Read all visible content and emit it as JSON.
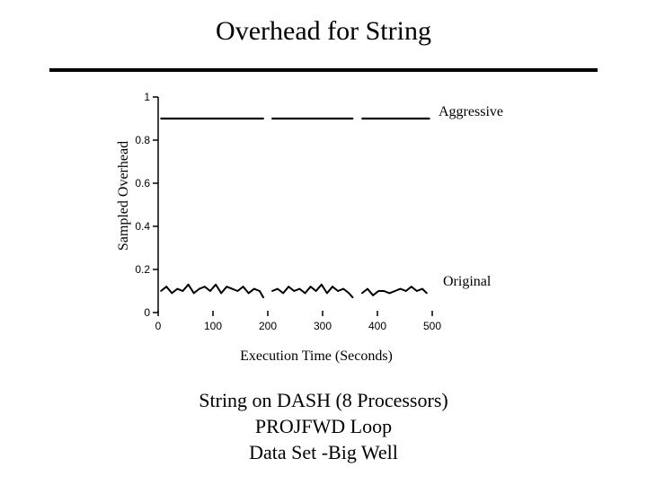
{
  "slide": {
    "title": "Overhead for String",
    "caption_lines": [
      "String on DASH (8 Processors)",
      "PROJFWD Loop",
      "Data Set -Big Well"
    ]
  },
  "chart_data": {
    "type": "line",
    "title": "",
    "xlabel": "Execution Time (Seconds)",
    "ylabel": "Sampled Overhead",
    "xlim": [
      0,
      500
    ],
    "ylim": [
      0,
      1
    ],
    "x_ticks": [
      0,
      100,
      200,
      300,
      400,
      500
    ],
    "y_ticks": [
      0,
      0.2,
      0.4,
      0.6,
      0.8,
      1
    ],
    "grid": false,
    "series": [
      {
        "name": "Aggressive",
        "segments": [
          {
            "x": [
              5,
              40,
              80,
              120,
              160,
              192
            ],
            "y": [
              0.9,
              0.9,
              0.9,
              0.9,
              0.9,
              0.9
            ]
          },
          {
            "x": [
              208,
              240,
              280,
              320,
              355
            ],
            "y": [
              0.9,
              0.9,
              0.9,
              0.9,
              0.9
            ]
          },
          {
            "x": [
              372,
              410,
              450,
              495
            ],
            "y": [
              0.9,
              0.9,
              0.9,
              0.9
            ]
          }
        ]
      },
      {
        "name": "Original",
        "segments": [
          {
            "x": [
              5,
              15,
              25,
              35,
              45,
              55,
              65,
              75,
              85,
              95,
              105,
              115,
              125,
              135,
              145,
              155,
              165,
              175,
              185,
              192
            ],
            "y": [
              0.1,
              0.12,
              0.09,
              0.11,
              0.1,
              0.13,
              0.09,
              0.11,
              0.12,
              0.1,
              0.13,
              0.09,
              0.12,
              0.11,
              0.1,
              0.12,
              0.09,
              0.11,
              0.1,
              0.07
            ]
          },
          {
            "x": [
              208,
              218,
              228,
              238,
              248,
              258,
              268,
              278,
              288,
              298,
              308,
              318,
              328,
              338,
              348,
              355
            ],
            "y": [
              0.1,
              0.11,
              0.09,
              0.12,
              0.1,
              0.11,
              0.09,
              0.12,
              0.1,
              0.13,
              0.09,
              0.12,
              0.1,
              0.11,
              0.09,
              0.07
            ]
          },
          {
            "x": [
              372,
              382,
              392,
              402,
              412,
              422,
              432,
              442,
              452,
              462,
              472,
              482,
              490
            ],
            "y": [
              0.09,
              0.11,
              0.08,
              0.1,
              0.1,
              0.09,
              0.1,
              0.11,
              0.1,
              0.12,
              0.1,
              0.11,
              0.09
            ]
          }
        ]
      }
    ],
    "line_color": "#000000"
  }
}
